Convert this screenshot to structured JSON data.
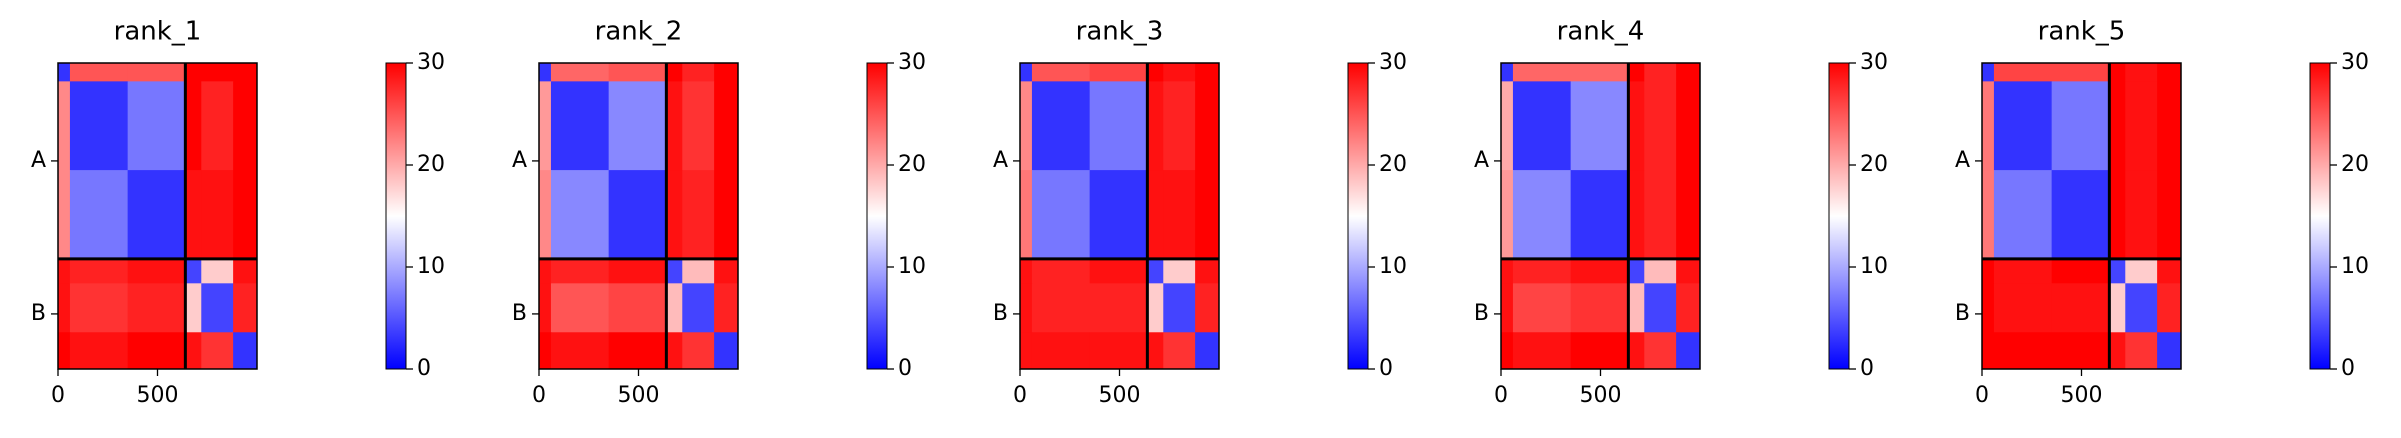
{
  "chart_data": [
    {
      "type": "heatmap",
      "title": "rank_1",
      "edges": [
        0,
        60,
        350,
        640,
        720,
        880,
        1000
      ],
      "chain_breaks": [
        640
      ],
      "z": [
        [
          3,
          25,
          25,
          30,
          30,
          30
        ],
        [
          22,
          3,
          7,
          30,
          28,
          30
        ],
        [
          22,
          7,
          3,
          29,
          29,
          30
        ],
        [
          29,
          28,
          29,
          4,
          18,
          29
        ],
        [
          29,
          27,
          28,
          18,
          4,
          28
        ],
        [
          30,
          29,
          30,
          29,
          27,
          3
        ]
      ],
      "xlim": [
        0,
        1000
      ],
      "ylim": [
        1000,
        0
      ],
      "xticks": [
        0,
        500
      ],
      "yticks": [
        {
          "value": 320,
          "label": "A"
        },
        {
          "value": 820,
          "label": "B"
        }
      ],
      "cmap": [
        "#0000ff",
        "#ffffff",
        "#ff0000"
      ],
      "clim": [
        0,
        30
      ],
      "cticks": [
        0,
        10,
        20,
        30
      ]
    },
    {
      "type": "heatmap",
      "title": "rank_2",
      "edges": [
        0,
        60,
        350,
        640,
        720,
        880,
        1000
      ],
      "chain_breaks": [
        640
      ],
      "z": [
        [
          3,
          24,
          25,
          30,
          28,
          30
        ],
        [
          21,
          3,
          8,
          29,
          27,
          30
        ],
        [
          22,
          8,
          3,
          29,
          28,
          30
        ],
        [
          29,
          28,
          29,
          4,
          19,
          29
        ],
        [
          29,
          25,
          26,
          19,
          4,
          28
        ],
        [
          30,
          29,
          30,
          29,
          27,
          3
        ]
      ],
      "xlim": [
        0,
        1000
      ],
      "ylim": [
        1000,
        0
      ],
      "xticks": [
        0,
        500
      ],
      "yticks": [
        {
          "value": 320,
          "label": "A"
        },
        {
          "value": 820,
          "label": "B"
        }
      ],
      "cmap": [
        "#0000ff",
        "#ffffff",
        "#ff0000"
      ],
      "clim": [
        0,
        30
      ],
      "cticks": [
        0,
        10,
        20,
        30
      ]
    },
    {
      "type": "heatmap",
      "title": "rank_3",
      "edges": [
        0,
        60,
        350,
        640,
        720,
        880,
        1000
      ],
      "chain_breaks": [
        640
      ],
      "z": [
        [
          3,
          25,
          26,
          30,
          29,
          30
        ],
        [
          22,
          3,
          7,
          29,
          28,
          30
        ],
        [
          23,
          7,
          3,
          29,
          29,
          30
        ],
        [
          29,
          28,
          29,
          4,
          18,
          29
        ],
        [
          29,
          28,
          28,
          18,
          4,
          28
        ],
        [
          29,
          29,
          29,
          29,
          27,
          3
        ]
      ],
      "xlim": [
        0,
        1000
      ],
      "ylim": [
        1000,
        0
      ],
      "xticks": [
        0,
        500
      ],
      "yticks": [
        {
          "value": 320,
          "label": "A"
        },
        {
          "value": 820,
          "label": "B"
        }
      ],
      "cmap": [
        "#0000ff",
        "#ffffff",
        "#ff0000"
      ],
      "clim": [
        0,
        30
      ],
      "cticks": [
        0,
        10,
        20,
        30
      ]
    },
    {
      "type": "heatmap",
      "title": "rank_4",
      "edges": [
        0,
        60,
        350,
        640,
        720,
        880,
        1000
      ],
      "chain_breaks": [
        640
      ],
      "z": [
        [
          3,
          24,
          24,
          30,
          28,
          30
        ],
        [
          20,
          3,
          8,
          29,
          28,
          30
        ],
        [
          21,
          8,
          3,
          29,
          28,
          30
        ],
        [
          29,
          28,
          29,
          4,
          19,
          29
        ],
        [
          29,
          26,
          27,
          19,
          4,
          28
        ],
        [
          30,
          29,
          30,
          29,
          27,
          3
        ]
      ],
      "xlim": [
        0,
        1000
      ],
      "ylim": [
        1000,
        0
      ],
      "xticks": [
        0,
        500
      ],
      "yticks": [
        {
          "value": 320,
          "label": "A"
        },
        {
          "value": 820,
          "label": "B"
        }
      ],
      "cmap": [
        "#0000ff",
        "#ffffff",
        "#ff0000"
      ],
      "clim": [
        0,
        30
      ],
      "cticks": [
        0,
        10,
        20,
        30
      ]
    },
    {
      "type": "heatmap",
      "title": "rank_5",
      "edges": [
        0,
        60,
        350,
        640,
        720,
        880,
        1000
      ],
      "chain_breaks": [
        640
      ],
      "z": [
        [
          3,
          26,
          26,
          30,
          29,
          30
        ],
        [
          23,
          3,
          7,
          30,
          29,
          30
        ],
        [
          23,
          7,
          3,
          30,
          29,
          30
        ],
        [
          30,
          29,
          30,
          4,
          18,
          29
        ],
        [
          30,
          29,
          29,
          18,
          4,
          28
        ],
        [
          30,
          30,
          30,
          29,
          27,
          3
        ]
      ],
      "xlim": [
        0,
        1000
      ],
      "ylim": [
        1000,
        0
      ],
      "xticks": [
        0,
        500
      ],
      "yticks": [
        {
          "value": 320,
          "label": "A"
        },
        {
          "value": 820,
          "label": "B"
        }
      ],
      "cmap": [
        "#0000ff",
        "#ffffff",
        "#ff0000"
      ],
      "clim": [
        0,
        30
      ],
      "cticks": [
        0,
        10,
        20,
        30
      ]
    }
  ]
}
